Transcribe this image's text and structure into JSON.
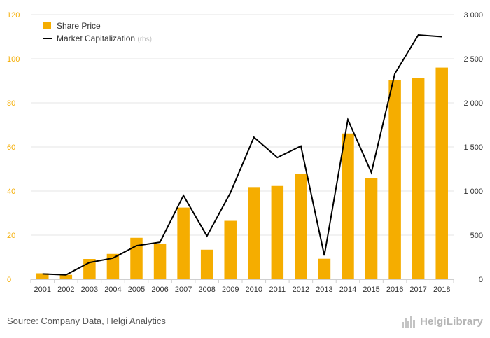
{
  "chart_data": {
    "type": "bar+line",
    "categories": [
      "2001",
      "2002",
      "2003",
      "2004",
      "2005",
      "2006",
      "2007",
      "2008",
      "2009",
      "2010",
      "2011",
      "2012",
      "2013",
      "2014",
      "2015",
      "2016",
      "2017",
      "2018"
    ],
    "series": [
      {
        "name": "Share Price",
        "type": "bar",
        "axis": "left",
        "color": "#F5AD00",
        "values": [
          2.7,
          2.0,
          9.2,
          11.5,
          18.8,
          16.2,
          32.5,
          13.4,
          26.5,
          41.8,
          42.3,
          47.8,
          9.3,
          66.1,
          46.0,
          90.2,
          91.2,
          96.0
        ]
      },
      {
        "name": "Market Capitalization",
        "legend_suffix": "(rhs)",
        "type": "line",
        "axis": "right",
        "color": "#000000",
        "values": [
          60,
          50,
          190,
          240,
          380,
          420,
          950,
          490,
          980,
          1610,
          1380,
          1510,
          270,
          1810,
          1210,
          2330,
          2770,
          2750
        ]
      }
    ],
    "y_left": {
      "min": 0,
      "max": 120,
      "ticks": [
        "0",
        "20",
        "40",
        "60",
        "80",
        "100",
        "120"
      ],
      "color": "#F5AD00"
    },
    "y_right": {
      "min": 0,
      "max": 3000,
      "ticks": [
        "0",
        "500",
        "1 000",
        "1 500",
        "2 000",
        "2 500",
        "3 000"
      ]
    },
    "grid": true,
    "legend_position": "top-left"
  },
  "footer": {
    "source": "Source: Company Data, Helgi Analytics",
    "logo_text": "HelgiLibrary"
  }
}
